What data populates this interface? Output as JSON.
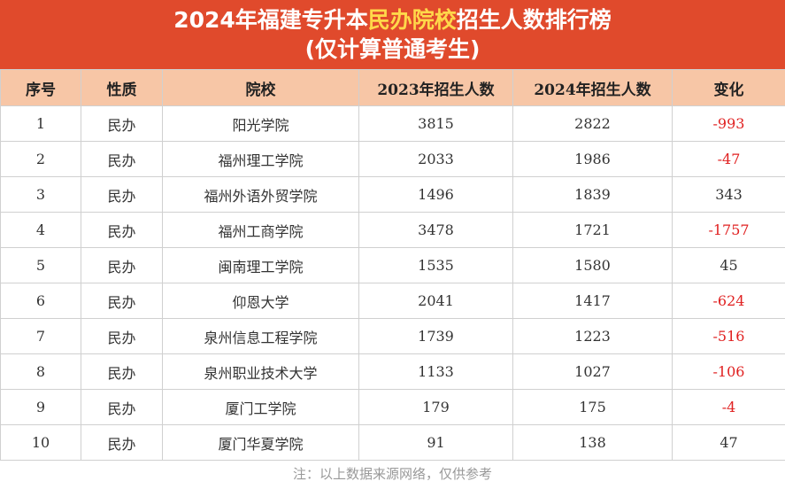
{
  "title": {
    "line1_pre": "2024年福建专升本",
    "line1_highlight": "民办院校",
    "line1_post": "招生人数排行榜",
    "line2": "(仅计算普通考生)"
  },
  "table": {
    "headers": [
      "序号",
      "性质",
      "院校",
      "2023年招生人数",
      "2024年招生人数",
      "变化"
    ],
    "rows": [
      {
        "no": "1",
        "type": "民办",
        "school": "阳光学院",
        "y2023": "3815",
        "y2024": "2822",
        "change": "-993",
        "negative": true
      },
      {
        "no": "2",
        "type": "民办",
        "school": "福州理工学院",
        "y2023": "2033",
        "y2024": "1986",
        "change": "-47",
        "negative": true
      },
      {
        "no": "3",
        "type": "民办",
        "school": "福州外语外贸学院",
        "y2023": "1496",
        "y2024": "1839",
        "change": "343",
        "negative": false
      },
      {
        "no": "4",
        "type": "民办",
        "school": "福州工商学院",
        "y2023": "3478",
        "y2024": "1721",
        "change": "-1757",
        "negative": true
      },
      {
        "no": "5",
        "type": "民办",
        "school": "闽南理工学院",
        "y2023": "1535",
        "y2024": "1580",
        "change": "45",
        "negative": false
      },
      {
        "no": "6",
        "type": "民办",
        "school": "仰恩大学",
        "y2023": "2041",
        "y2024": "1417",
        "change": "-624",
        "negative": true
      },
      {
        "no": "7",
        "type": "民办",
        "school": "泉州信息工程学院",
        "y2023": "1739",
        "y2024": "1223",
        "change": "-516",
        "negative": true
      },
      {
        "no": "8",
        "type": "民办",
        "school": "泉州职业技术大学",
        "y2023": "1133",
        "y2024": "1027",
        "change": "-106",
        "negative": true
      },
      {
        "no": "9",
        "type": "民办",
        "school": "厦门工学院",
        "y2023": "179",
        "y2024": "175",
        "change": "-4",
        "negative": true
      },
      {
        "no": "10",
        "type": "民办",
        "school": "厦门华夏学院",
        "y2023": "91",
        "y2024": "138",
        "change": "47",
        "negative": false
      }
    ]
  },
  "note": "注：以上数据来源网络，仅供参考",
  "colors": {
    "title_bg": "#e04a2c",
    "title_highlight": "#ffd84a",
    "header_bg": "#f7c6a6",
    "negative": "#e02020"
  }
}
